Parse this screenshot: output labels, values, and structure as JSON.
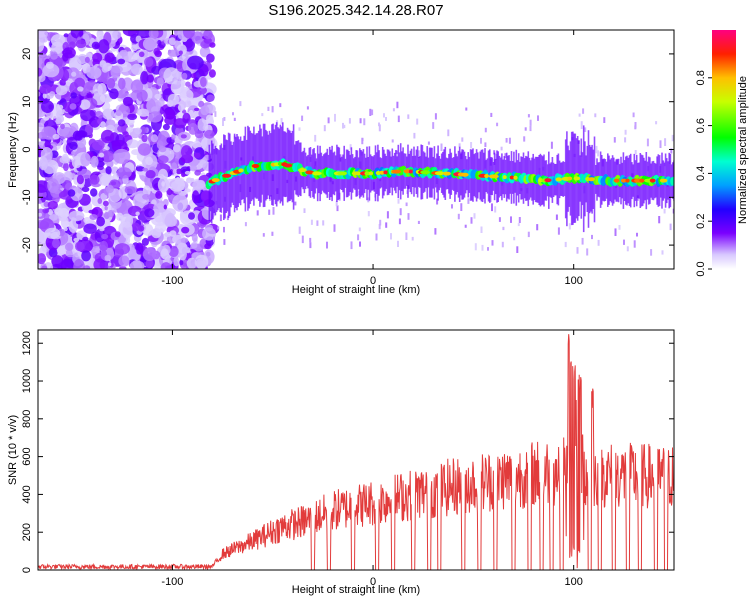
{
  "title": "S196.2025.342.14.28.R07",
  "chart_data": [
    {
      "type": "heatmap",
      "name": "spectrogram",
      "xlabel": "Height of straight line (km)",
      "ylabel": "Frequency (Hz)",
      "xlim": [
        -167,
        150
      ],
      "ylim": [
        -25,
        25
      ],
      "x_ticks": [
        {
          "value": -100,
          "label": "-100"
        },
        {
          "value": 0,
          "label": "0"
        },
        {
          "value": 100,
          "label": "100"
        }
      ],
      "y_ticks": [
        {
          "value": -20,
          "label": "-20"
        },
        {
          "value": -10,
          "label": "-10"
        },
        {
          "value": 0,
          "label": "0"
        },
        {
          "value": 10,
          "label": "10"
        },
        {
          "value": 20,
          "label": "20"
        }
      ],
      "noise_region": {
        "x_from": -167,
        "x_to": -80,
        "description_amplitude": "low-moderate"
      },
      "signal_track": {
        "description": "meteor echo track",
        "points": [
          {
            "x": -82,
            "freq": -7
          },
          {
            "x": -70,
            "freq": -5
          },
          {
            "x": -60,
            "freq": -3.5
          },
          {
            "x": -45,
            "freq": -3
          },
          {
            "x": -30,
            "freq": -5
          },
          {
            "x": -15,
            "freq": -5
          },
          {
            "x": 0,
            "freq": -5
          },
          {
            "x": 15,
            "freq": -4.5
          },
          {
            "x": 35,
            "freq": -5
          },
          {
            "x": 55,
            "freq": -5.5
          },
          {
            "x": 75,
            "freq": -6
          },
          {
            "x": 85,
            "freq": -6.5
          },
          {
            "x": 100,
            "freq": -6
          },
          {
            "x": 120,
            "freq": -6.5
          },
          {
            "x": 150,
            "freq": -6.5
          }
        ]
      },
      "colorbar": {
        "label": "Normalized spectral amplitude",
        "range": [
          0,
          1
        ],
        "ticks": [
          {
            "value": 0.0,
            "label": "0.0"
          },
          {
            "value": 0.2,
            "label": "0.2"
          },
          {
            "value": 0.4,
            "label": "0.4"
          },
          {
            "value": 0.6,
            "label": "0.6"
          },
          {
            "value": 0.8,
            "label": "0.8"
          }
        ]
      }
    },
    {
      "type": "line",
      "name": "snr",
      "xlabel": "Height of straight line (km)",
      "ylabel": "SNR (10 * v/v)",
      "xlim": [
        -167,
        150
      ],
      "ylim": [
        0,
        1270
      ],
      "color": "#e23b3b",
      "x_ticks": [
        {
          "value": -100,
          "label": "-100"
        },
        {
          "value": 0,
          "label": "0"
        },
        {
          "value": 100,
          "label": "100"
        }
      ],
      "y_ticks": [
        {
          "value": 0,
          "label": "0"
        },
        {
          "value": 200,
          "label": "200"
        },
        {
          "value": 400,
          "label": "400"
        },
        {
          "value": 600,
          "label": "600"
        },
        {
          "value": 800,
          "label": "800"
        },
        {
          "value": 1000,
          "label": "1000"
        },
        {
          "value": 1200,
          "label": "1200"
        }
      ],
      "envelope": [
        {
          "x": -167,
          "snr": 25
        },
        {
          "x": -80,
          "snr": 25
        },
        {
          "x": -75,
          "snr": 100
        },
        {
          "x": -60,
          "snr": 180
        },
        {
          "x": -45,
          "snr": 270
        },
        {
          "x": -35,
          "snr": 300
        },
        {
          "x": -20,
          "snr": 370
        },
        {
          "x": 0,
          "snr": 420
        },
        {
          "x": 20,
          "snr": 470
        },
        {
          "x": 40,
          "snr": 520
        },
        {
          "x": 60,
          "snr": 560
        },
        {
          "x": 80,
          "snr": 600
        },
        {
          "x": 95,
          "snr": 620
        },
        {
          "x": 100,
          "snr": 900
        },
        {
          "x": 105,
          "snr": 600
        },
        {
          "x": 120,
          "snr": 590
        },
        {
          "x": 150,
          "snr": 580
        }
      ],
      "peaks": [
        {
          "x": 98,
          "snr": 1270
        },
        {
          "x": 100,
          "snr": 1100
        },
        {
          "x": 103,
          "snr": 1050
        },
        {
          "x": 109,
          "snr": 1000
        }
      ],
      "dropouts_x": [
        -30,
        -22,
        -10,
        2,
        10,
        20,
        28,
        33,
        45,
        53,
        61,
        70,
        78,
        84,
        89,
        94,
        108,
        113,
        120,
        127,
        133,
        141,
        146
      ]
    }
  ]
}
